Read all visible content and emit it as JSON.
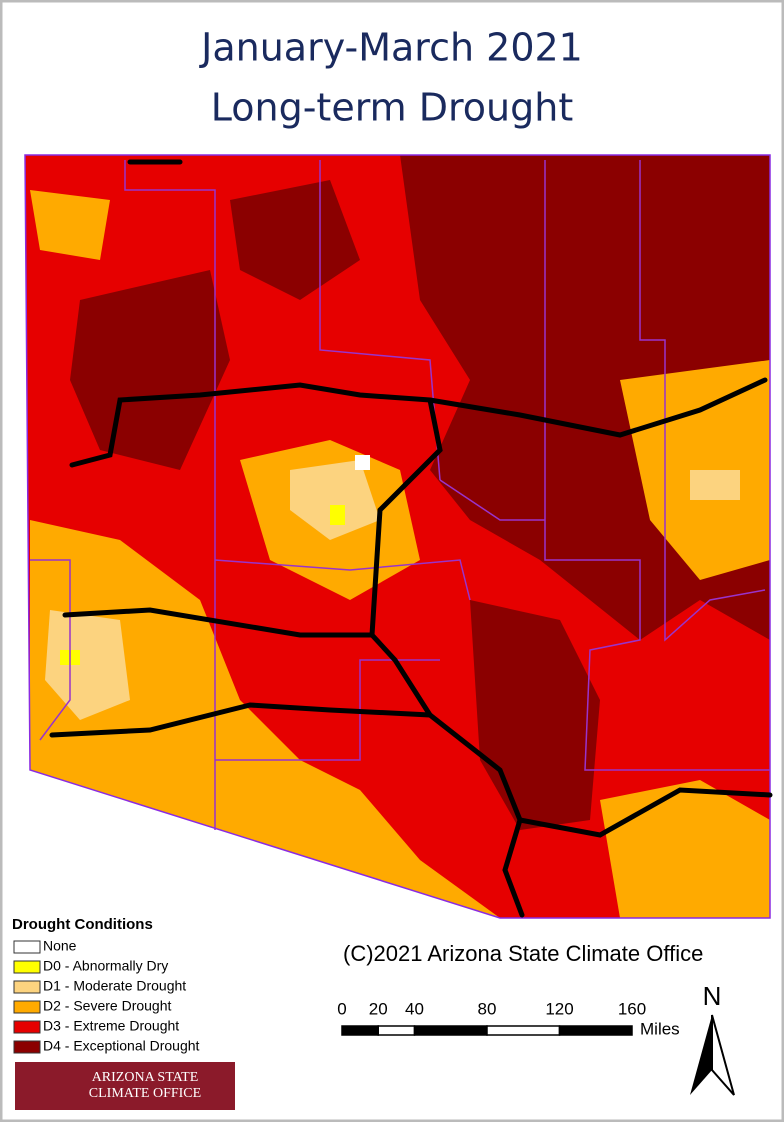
{
  "header": {
    "title_lines": [
      "January-March 2021",
      "Long-term Drought"
    ]
  },
  "legend": {
    "title": "Drought Conditions",
    "items": [
      {
        "label": "None",
        "color": "#ffffff"
      },
      {
        "label": "D0 - Abnormally Dry",
        "color": "#ffff00"
      },
      {
        "label": "D1 - Moderate Drought",
        "color": "#fcd37f"
      },
      {
        "label": "D2 - Severe Drought",
        "color": "#ffaa00"
      },
      {
        "label": "D3 - Extreme Drought",
        "color": "#e60000"
      },
      {
        "label": "D4 - Exceptional Drought",
        "color": "#8b0000"
      }
    ]
  },
  "credit": "(C)2021 Arizona State Climate Office",
  "scale_bar": {
    "ticks": [
      0,
      20,
      40,
      80,
      120,
      160
    ],
    "unit": "Miles"
  },
  "north_arrow": "N",
  "logo": {
    "lines": [
      "ARIZONA STATE",
      "CLIMATE OFFICE"
    ]
  }
}
